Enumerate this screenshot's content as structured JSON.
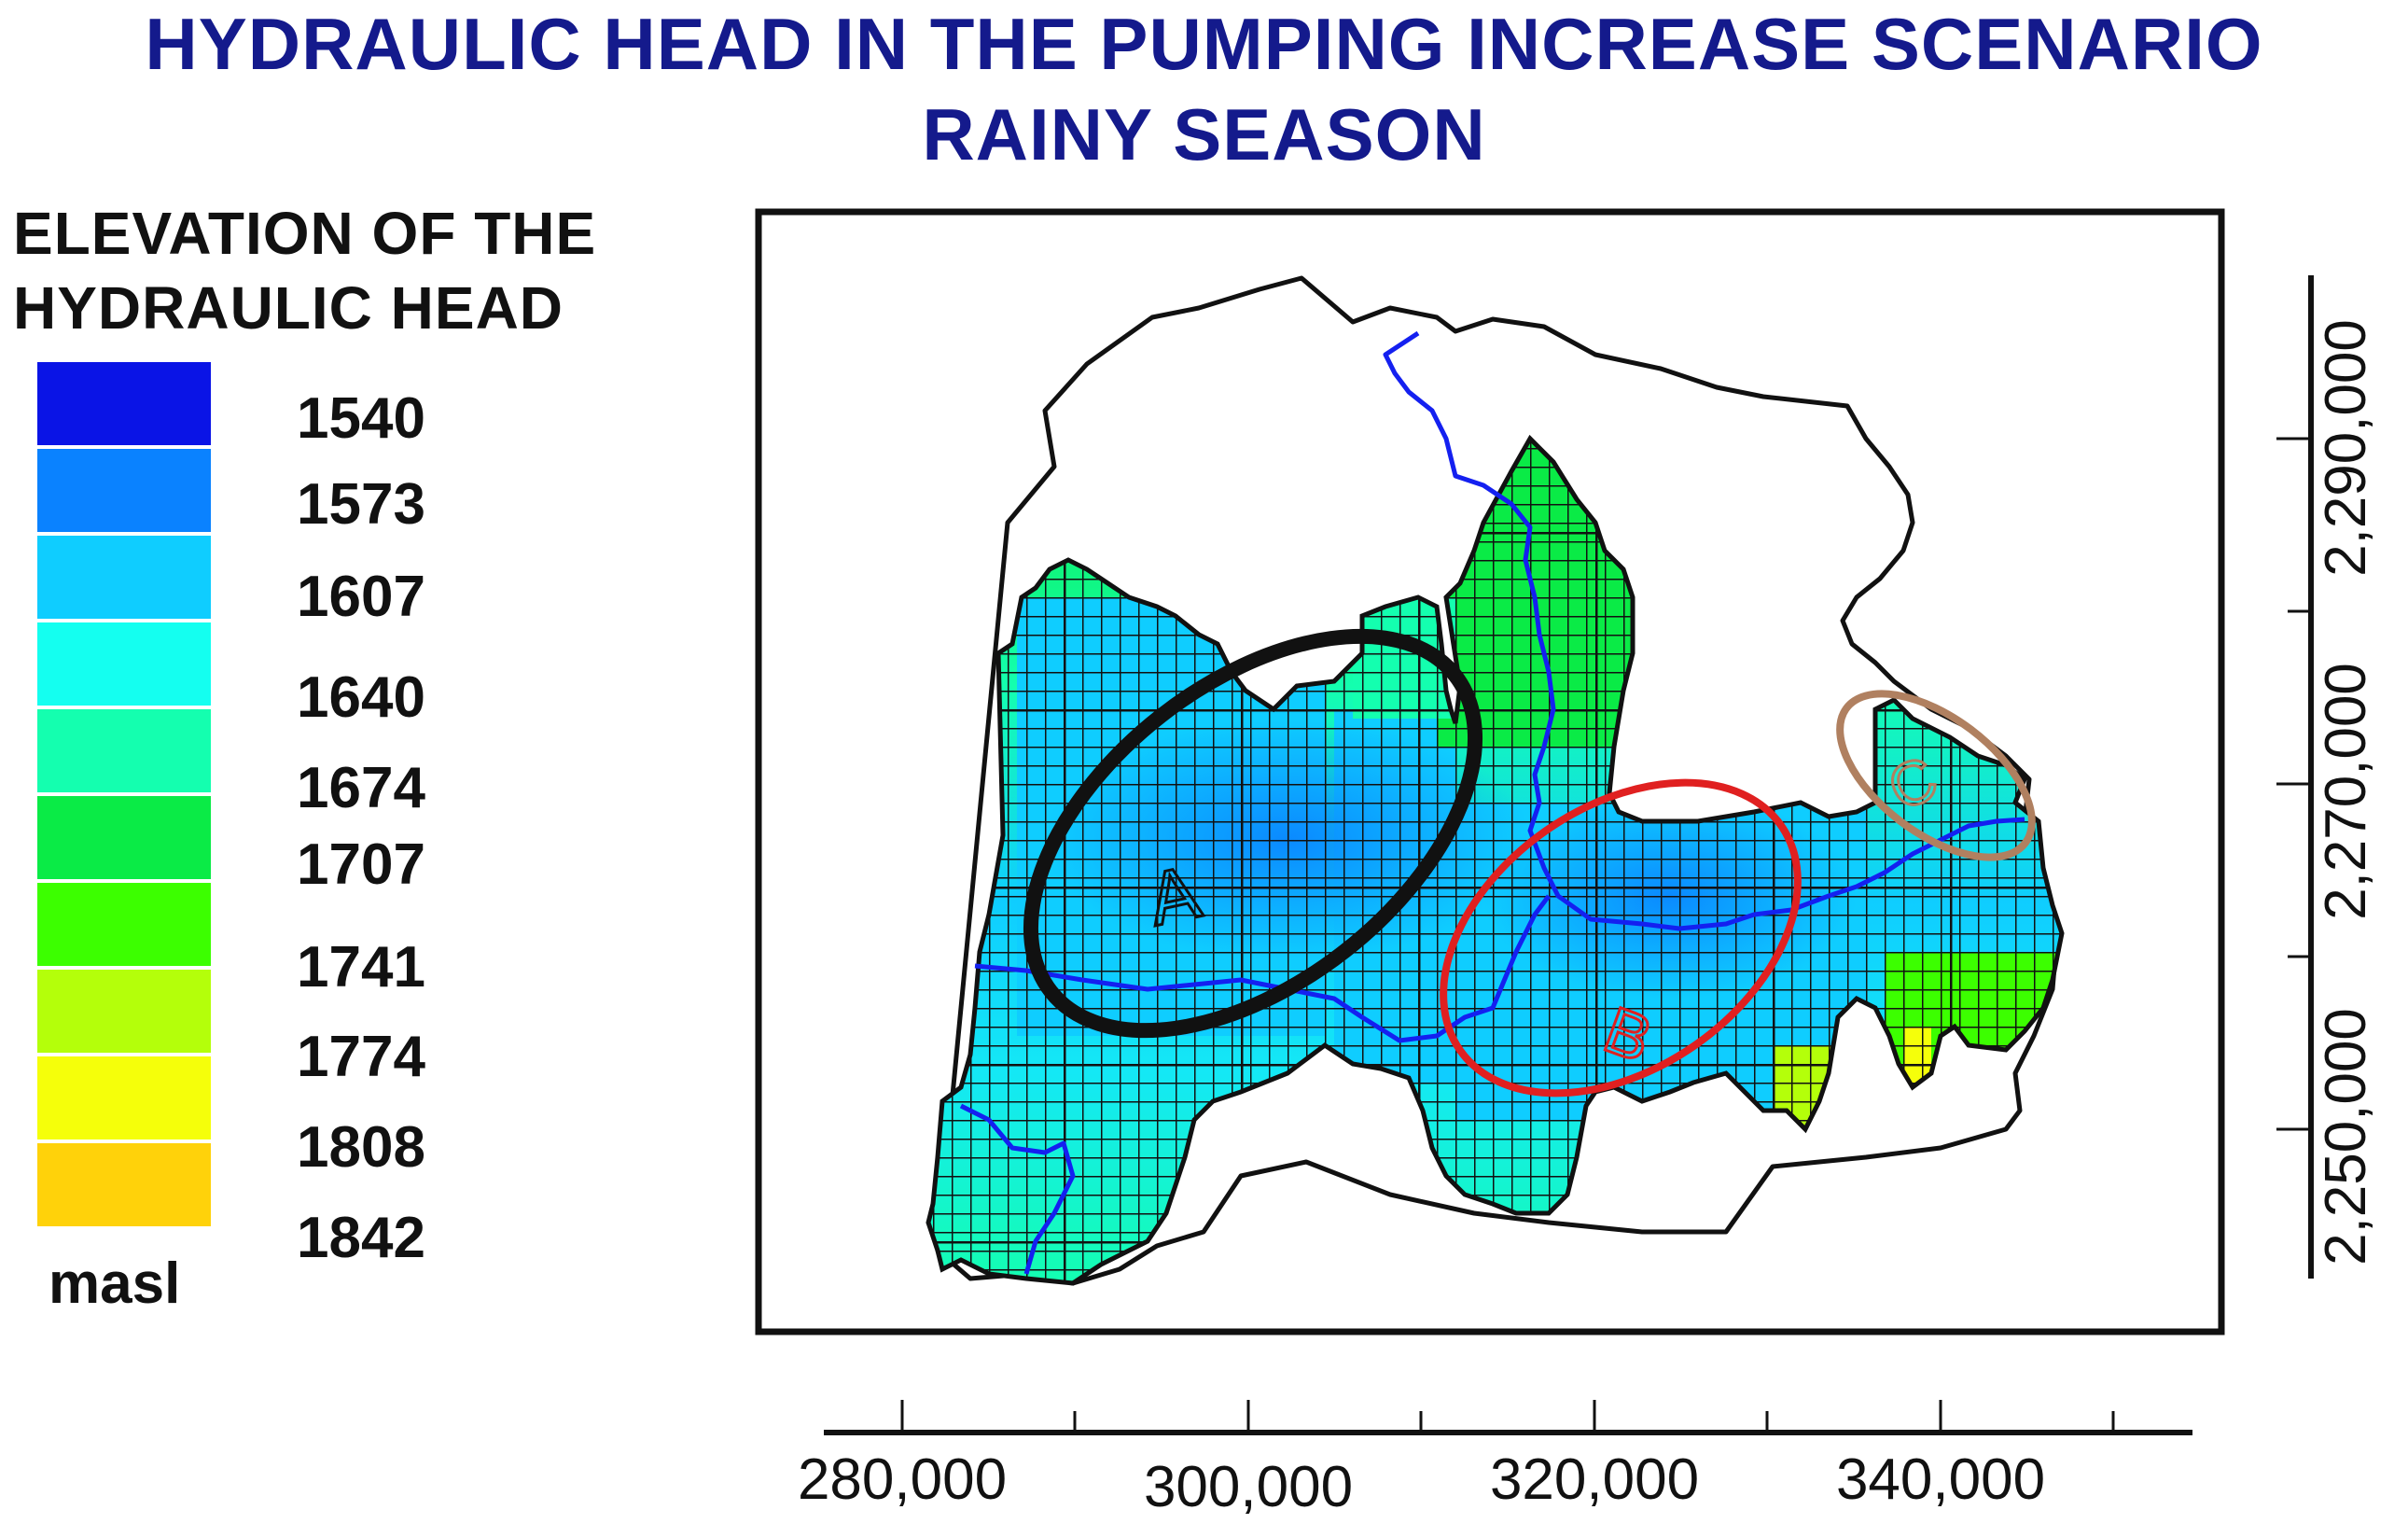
{
  "title": {
    "line1": "HYDRAULIC HEAD IN THE PUMPING INCREASE SCENARIO",
    "line2": "RAINY SEASON"
  },
  "legend": {
    "heading_line1": "ELEVATION OF THE",
    "heading_line2": "HYDRAULIC HEAD",
    "unit": "masl",
    "entries": [
      {
        "value": "1540",
        "color": "#0a14e6"
      },
      {
        "value": "1573",
        "color": "#0a82ff"
      },
      {
        "value": "1607",
        "color": "#0fcdff"
      },
      {
        "value": "1640",
        "color": "#14fff0"
      },
      {
        "value": "1674",
        "color": "#14ffaf"
      },
      {
        "value": "1707",
        "color": "#0aeb46"
      },
      {
        "value": "1741",
        "color": "#3cff00"
      },
      {
        "value": "1774",
        "color": "#b4ff0a"
      },
      {
        "value": "1808",
        "color": "#f5ff0a"
      },
      {
        "value": "1842",
        "color": "#ffd20a"
      }
    ]
  },
  "x_axis": {
    "ticks": [
      "280,000",
      "300,000",
      "320,000",
      "340,000"
    ]
  },
  "y_axis": {
    "ticks": [
      "2,290,000",
      "2,270,000",
      "2,250,000"
    ]
  },
  "zones": [
    {
      "label": "A",
      "outline_color": "#111111"
    },
    {
      "label": "B",
      "outline_color": "#e02020"
    },
    {
      "label": "C",
      "outline_color": "#b08060"
    }
  ],
  "colors": {
    "river": "#1420f0",
    "boundary": "#111111",
    "grid": "#111111"
  }
}
